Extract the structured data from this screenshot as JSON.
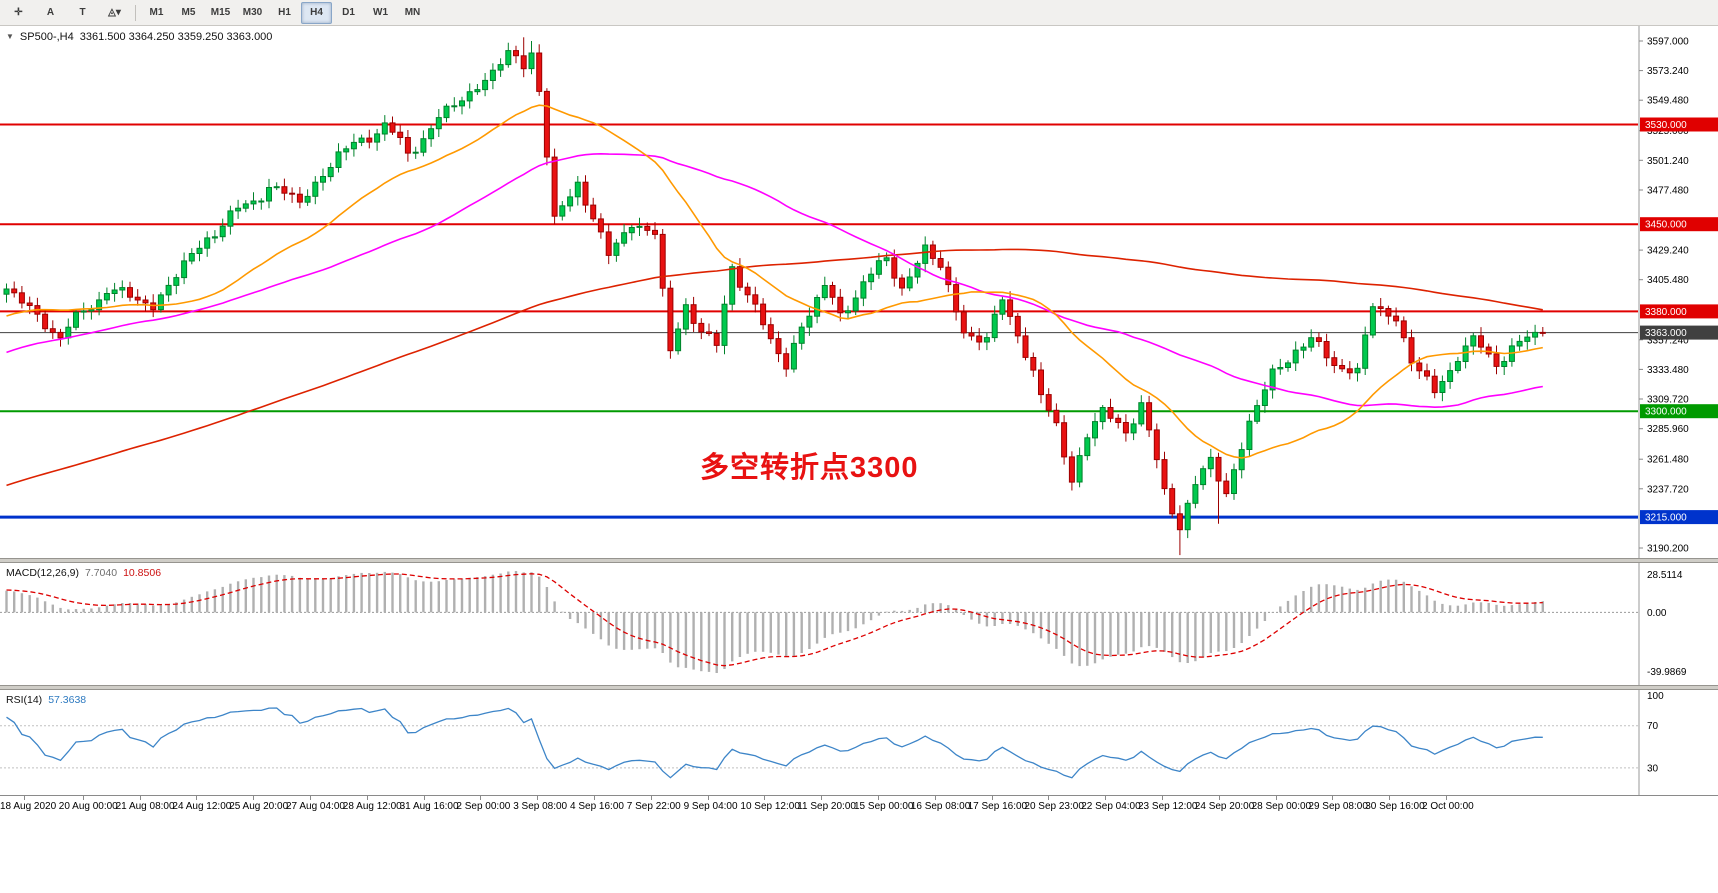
{
  "toolbar": {
    "tools": [
      {
        "name": "crosshair",
        "glyph": "✛"
      },
      {
        "name": "text-label",
        "glyph": "A"
      },
      {
        "name": "text-box",
        "glyph": "T"
      },
      {
        "name": "shapes-dropdown",
        "glyph": "◬▾"
      }
    ],
    "timeframes": [
      "M1",
      "M5",
      "M15",
      "M30",
      "H1",
      "H4",
      "D1",
      "W1",
      "MN"
    ],
    "active_timeframe": "H4"
  },
  "chart": {
    "collapse_glyph": "▼",
    "symbol_label": "SP500-,H4",
    "ohlc_label": "3361.500 3364.250 3359.250 3363.000",
    "annotation": {
      "text": "多空转折点3300",
      "color": "#e81212"
    },
    "colors": {
      "up": "#00c94e",
      "up_border": "#00822a",
      "down": "#e81212",
      "down_border": "#9c0000",
      "ma_fast": "#ff9900",
      "ma_mid": "#ff00ff",
      "ma_slow": "#dd2200",
      "macd_hist": "#b0b0b0",
      "macd_signal": "#dd0000",
      "rsi": "#3d85c8"
    },
    "price_axis": {
      "ticks": [
        {
          "v": 3597.0,
          "label": "3597.000"
        },
        {
          "v": 3573.24,
          "label": "3573.240"
        },
        {
          "v": 3549.48,
          "label": "3549.480"
        },
        {
          "v": 3525.0,
          "label": "3525.000"
        },
        {
          "v": 3501.24,
          "label": "3501.240"
        },
        {
          "v": 3477.48,
          "label": "3477.480"
        },
        {
          "v": 3429.24,
          "label": "3429.240"
        },
        {
          "v": 3405.48,
          "label": "3405.480"
        },
        {
          "v": 3357.24,
          "label": "3357.240"
        },
        {
          "v": 3333.48,
          "label": "3333.480"
        },
        {
          "v": 3309.72,
          "label": "3309.720"
        },
        {
          "v": 3285.96,
          "label": "3285.960"
        },
        {
          "v": 3261.48,
          "label": "3261.480"
        },
        {
          "v": 3237.72,
          "label": "3237.720"
        },
        {
          "v": 3190.2,
          "label": "3190.200"
        }
      ]
    },
    "hlines": [
      {
        "v": 3530,
        "label": "3530.000",
        "type": "resistance",
        "color": "#e00000",
        "width": 2
      },
      {
        "v": 3450,
        "label": "3450.000",
        "type": "resistance",
        "color": "#e00000",
        "width": 2
      },
      {
        "v": 3380,
        "label": "3380.000",
        "type": "resistance",
        "color": "#e00000",
        "width": 2
      },
      {
        "v": 3300,
        "label": "3300.000",
        "type": "support",
        "color": "#009a00",
        "width": 2
      },
      {
        "v": 3215,
        "label": "3215.000",
        "type": "support",
        "color": "#0033cc",
        "width": 3
      }
    ],
    "current_price": {
      "v": 3363.0,
      "label": "3363.000",
      "color": "#404040"
    }
  },
  "macd_panel": {
    "label": "MACD(12,26,9)",
    "value_main": "7.7040",
    "value_signal": "10.8506",
    "scale_max": "28.5114",
    "scale_zero": "0.00",
    "scale_min": "-39.9869"
  },
  "rsi_panel": {
    "label": "RSI(14)",
    "value": "57.3638",
    "levels": [
      {
        "v": 100,
        "label": "100",
        "line": false
      },
      {
        "v": 70,
        "label": "70",
        "line": true
      },
      {
        "v": 30,
        "label": "30",
        "line": true
      }
    ]
  },
  "time_axis": [
    "18 Aug 2020",
    "20 Aug 00:00",
    "21 Aug 08:00",
    "24 Aug 12:00",
    "25 Aug 20:00",
    "27 Aug 04:00",
    "28 Aug 12:00",
    "31 Aug 16:00",
    "2 Sep 00:00",
    "3 Sep 08:00",
    "4 Sep 16:00",
    "7 Sep 22:00",
    "9 Sep 04:00",
    "10 Sep 12:00",
    "11 Sep 20:00",
    "15 Sep 00:00",
    "16 Sep 08:00",
    "17 Sep 16:00",
    "20 Sep 23:00",
    "22 Sep 04:00",
    "23 Sep 12:00",
    "24 Sep 20:00",
    "28 Sep 00:00",
    "29 Sep 08:00",
    "30 Sep 16:00",
    "2 Oct 00:00"
  ],
  "chart_data": {
    "type": "candlestick",
    "symbol": "SP500",
    "timeframe": "H4",
    "last_price": 3363.0,
    "price_range": [
      3190.2,
      3597.0
    ],
    "ma_periods": {
      "fast": 24,
      "mid": 52,
      "slow": 150
    },
    "macd_params": [
      12,
      26,
      9
    ],
    "rsi_period": 14,
    "price_anchors": [
      [
        -160,
        3080
      ],
      [
        -120,
        3140
      ],
      [
        -90,
        3200
      ],
      [
        -60,
        3270
      ],
      [
        -30,
        3340
      ],
      [
        -10,
        3380
      ],
      [
        0,
        3398
      ],
      [
        7,
        3360
      ],
      [
        13,
        3398
      ],
      [
        19,
        3385
      ],
      [
        26,
        3440
      ],
      [
        34,
        3480
      ],
      [
        38,
        3468
      ],
      [
        43,
        3505
      ],
      [
        49,
        3530
      ],
      [
        52,
        3506
      ],
      [
        56,
        3535
      ],
      [
        60,
        3555
      ],
      [
        65,
        3585
      ],
      [
        67,
        3578
      ],
      [
        68,
        3590
      ],
      [
        69,
        3560
      ],
      [
        71,
        3450
      ],
      [
        74,
        3485
      ],
      [
        78,
        3425
      ],
      [
        81,
        3450
      ],
      [
        84,
        3445
      ],
      [
        86,
        3345
      ],
      [
        88,
        3385
      ],
      [
        92,
        3350
      ],
      [
        94,
        3415
      ],
      [
        97,
        3385
      ],
      [
        99,
        3355
      ],
      [
        101,
        3335
      ],
      [
        103,
        3370
      ],
      [
        106,
        3400
      ],
      [
        108,
        3375
      ],
      [
        111,
        3405
      ],
      [
        114,
        3420
      ],
      [
        116,
        3400
      ],
      [
        119,
        3430
      ],
      [
        121,
        3415
      ],
      [
        124,
        3365
      ],
      [
        127,
        3355
      ],
      [
        129,
        3390
      ],
      [
        131,
        3365
      ],
      [
        134,
        3310
      ],
      [
        136,
        3290
      ],
      [
        138,
        3245
      ],
      [
        140,
        3280
      ],
      [
        142,
        3300
      ],
      [
        145,
        3285
      ],
      [
        147,
        3305
      ],
      [
        150,
        3235
      ],
      [
        152,
        3210
      ],
      [
        154,
        3240
      ],
      [
        156,
        3260
      ],
      [
        158,
        3235
      ],
      [
        161,
        3290
      ],
      [
        164,
        3330
      ],
      [
        167,
        3350
      ],
      [
        169,
        3355
      ],
      [
        172,
        3340
      ],
      [
        175,
        3330
      ],
      [
        177,
        3385
      ],
      [
        180,
        3375
      ],
      [
        182,
        3340
      ],
      [
        185,
        3315
      ],
      [
        188,
        3345
      ],
      [
        190,
        3355
      ],
      [
        193,
        3340
      ],
      [
        195,
        3350
      ],
      [
        197,
        3358
      ],
      [
        199,
        3363
      ]
    ]
  }
}
